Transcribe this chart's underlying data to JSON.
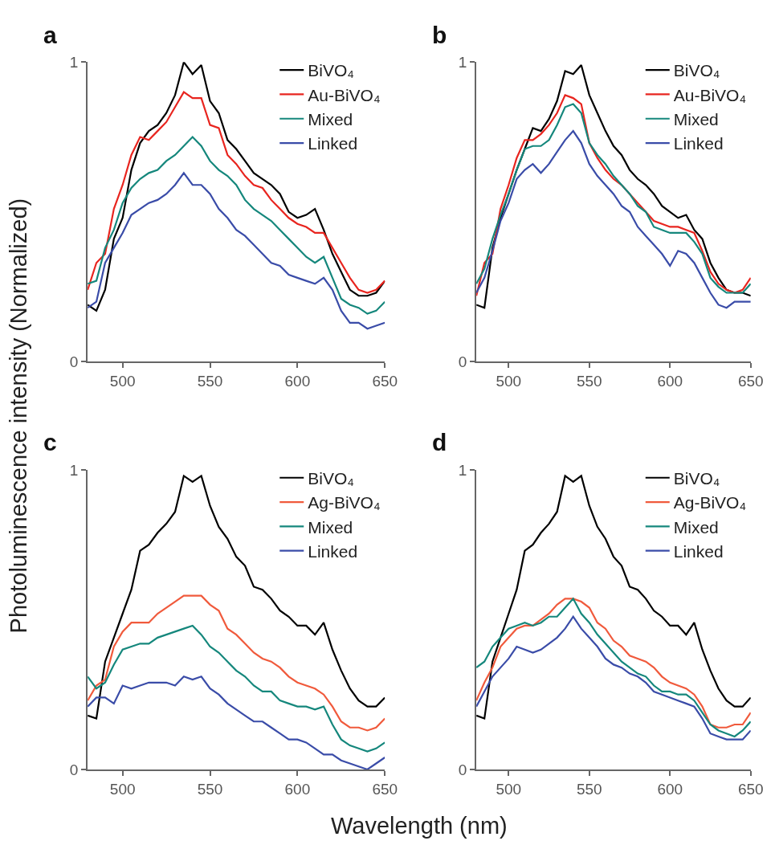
{
  "chart_data": [
    {
      "type": "line",
      "title": "a",
      "ylabel": "Photoluminescence intensity (Normalized)",
      "x": [
        480,
        485,
        490,
        495,
        500,
        505,
        510,
        515,
        520,
        525,
        530,
        535,
        540,
        545,
        550,
        555,
        560,
        565,
        570,
        575,
        580,
        585,
        590,
        595,
        600,
        605,
        610,
        615,
        620,
        625,
        630,
        635,
        640,
        645,
        650
      ],
      "xlim": [
        480,
        650
      ],
      "ylim": [
        0,
        1
      ],
      "xticks": [
        500,
        550,
        600,
        650
      ],
      "yticks": [
        0,
        1
      ],
      "legend": "top right",
      "line_style": "solid",
      "marker": "none",
      "series": [
        {
          "name": "BiVO₄",
          "color": "#000000",
          "values": [
            0.19,
            0.17,
            0.24,
            0.41,
            0.48,
            0.64,
            0.73,
            0.77,
            0.79,
            0.83,
            0.89,
            1.0,
            0.96,
            0.99,
            0.87,
            0.83,
            0.74,
            0.71,
            0.67,
            0.63,
            0.61,
            0.59,
            0.56,
            0.5,
            0.48,
            0.49,
            0.51,
            0.44,
            0.36,
            0.3,
            0.24,
            0.22,
            0.22,
            0.23,
            0.27
          ]
        },
        {
          "name": "Au-BiVO₄",
          "color": "#e8251f",
          "values": [
            0.24,
            0.33,
            0.36,
            0.51,
            0.59,
            0.69,
            0.75,
            0.74,
            0.77,
            0.8,
            0.85,
            0.9,
            0.88,
            0.88,
            0.79,
            0.78,
            0.69,
            0.66,
            0.62,
            0.59,
            0.58,
            0.54,
            0.51,
            0.48,
            0.46,
            0.45,
            0.43,
            0.43,
            0.38,
            0.33,
            0.28,
            0.24,
            0.23,
            0.24,
            0.27
          ]
        },
        {
          "name": "Mixed",
          "color": "#15877c",
          "values": [
            0.26,
            0.27,
            0.38,
            0.44,
            0.53,
            0.58,
            0.61,
            0.63,
            0.64,
            0.67,
            0.69,
            0.72,
            0.75,
            0.72,
            0.67,
            0.64,
            0.62,
            0.59,
            0.54,
            0.51,
            0.49,
            0.47,
            0.44,
            0.41,
            0.38,
            0.35,
            0.33,
            0.35,
            0.28,
            0.21,
            0.19,
            0.18,
            0.16,
            0.17,
            0.2
          ]
        },
        {
          "name": "Linked",
          "color": "#3a4ca8",
          "values": [
            0.18,
            0.2,
            0.33,
            0.38,
            0.43,
            0.49,
            0.51,
            0.53,
            0.54,
            0.56,
            0.59,
            0.63,
            0.59,
            0.59,
            0.56,
            0.51,
            0.48,
            0.44,
            0.42,
            0.39,
            0.36,
            0.33,
            0.32,
            0.29,
            0.28,
            0.27,
            0.26,
            0.28,
            0.24,
            0.17,
            0.13,
            0.13,
            0.11,
            0.12,
            0.13
          ]
        }
      ]
    },
    {
      "type": "line",
      "title": "b",
      "x": [
        480,
        485,
        490,
        495,
        500,
        505,
        510,
        515,
        520,
        525,
        530,
        535,
        540,
        545,
        550,
        555,
        560,
        565,
        570,
        575,
        580,
        585,
        590,
        595,
        600,
        605,
        610,
        615,
        620,
        625,
        630,
        635,
        640,
        645,
        650
      ],
      "xlim": [
        480,
        650
      ],
      "ylim": [
        0,
        1
      ],
      "xticks": [
        500,
        550,
        600,
        650
      ],
      "yticks": [
        0,
        1
      ],
      "legend": "top right",
      "line_style": "solid",
      "marker": "none",
      "series": [
        {
          "name": "BiVO₄",
          "color": "#000000",
          "values": [
            0.19,
            0.18,
            0.38,
            0.48,
            0.56,
            0.64,
            0.71,
            0.78,
            0.77,
            0.81,
            0.87,
            0.97,
            0.96,
            0.99,
            0.89,
            0.83,
            0.77,
            0.72,
            0.69,
            0.64,
            0.61,
            0.59,
            0.56,
            0.52,
            0.5,
            0.48,
            0.49,
            0.44,
            0.41,
            0.33,
            0.28,
            0.24,
            0.23,
            0.23,
            0.22
          ]
        },
        {
          "name": "Au-BiVO₄",
          "color": "#e8251f",
          "values": [
            0.22,
            0.33,
            0.36,
            0.51,
            0.59,
            0.68,
            0.74,
            0.74,
            0.76,
            0.79,
            0.83,
            0.89,
            0.88,
            0.86,
            0.73,
            0.68,
            0.64,
            0.61,
            0.59,
            0.56,
            0.53,
            0.5,
            0.47,
            0.46,
            0.45,
            0.45,
            0.44,
            0.43,
            0.37,
            0.3,
            0.26,
            0.24,
            0.23,
            0.24,
            0.28
          ]
        },
        {
          "name": "Mixed",
          "color": "#15877c",
          "values": [
            0.26,
            0.31,
            0.41,
            0.49,
            0.56,
            0.64,
            0.71,
            0.72,
            0.72,
            0.74,
            0.79,
            0.85,
            0.86,
            0.83,
            0.73,
            0.69,
            0.66,
            0.62,
            0.59,
            0.56,
            0.52,
            0.5,
            0.45,
            0.44,
            0.43,
            0.43,
            0.43,
            0.4,
            0.36,
            0.28,
            0.25,
            0.23,
            0.23,
            0.23,
            0.26
          ]
        },
        {
          "name": "Linked",
          "color": "#3a4ca8",
          "values": [
            0.23,
            0.28,
            0.37,
            0.47,
            0.53,
            0.61,
            0.64,
            0.66,
            0.63,
            0.66,
            0.7,
            0.74,
            0.77,
            0.73,
            0.66,
            0.62,
            0.59,
            0.56,
            0.52,
            0.5,
            0.45,
            0.42,
            0.39,
            0.36,
            0.32,
            0.37,
            0.36,
            0.33,
            0.28,
            0.23,
            0.19,
            0.18,
            0.2,
            0.2,
            0.2
          ]
        }
      ]
    },
    {
      "type": "line",
      "title": "c",
      "xlabel": "Wavelength (nm)",
      "x": [
        480,
        485,
        490,
        495,
        500,
        505,
        510,
        515,
        520,
        525,
        530,
        535,
        540,
        545,
        550,
        555,
        560,
        565,
        570,
        575,
        580,
        585,
        590,
        595,
        600,
        605,
        610,
        615,
        620,
        625,
        630,
        635,
        640,
        645,
        650
      ],
      "xlim": [
        480,
        650
      ],
      "ylim": [
        0,
        1
      ],
      "xticks": [
        500,
        550,
        600,
        650
      ],
      "yticks": [
        0,
        1
      ],
      "legend": "top right",
      "line_style": "solid",
      "marker": "none",
      "series": [
        {
          "name": "BiVO₄",
          "color": "#000000",
          "values": [
            0.18,
            0.17,
            0.36,
            0.44,
            0.52,
            0.6,
            0.73,
            0.75,
            0.79,
            0.82,
            0.86,
            0.98,
            0.96,
            0.98,
            0.88,
            0.81,
            0.77,
            0.71,
            0.68,
            0.61,
            0.6,
            0.57,
            0.53,
            0.51,
            0.48,
            0.48,
            0.45,
            0.49,
            0.4,
            0.33,
            0.27,
            0.23,
            0.21,
            0.21,
            0.24
          ]
        },
        {
          "name": "Ag-BiVO₄",
          "color": "#f05a3c",
          "values": [
            0.23,
            0.28,
            0.3,
            0.41,
            0.46,
            0.49,
            0.49,
            0.49,
            0.52,
            0.54,
            0.56,
            0.58,
            0.58,
            0.58,
            0.55,
            0.53,
            0.47,
            0.45,
            0.42,
            0.39,
            0.37,
            0.36,
            0.34,
            0.31,
            0.29,
            0.28,
            0.27,
            0.25,
            0.21,
            0.16,
            0.14,
            0.14,
            0.13,
            0.14,
            0.17
          ]
        },
        {
          "name": "Mixed",
          "color": "#15877c",
          "values": [
            0.31,
            0.27,
            0.29,
            0.35,
            0.4,
            0.41,
            0.42,
            0.42,
            0.44,
            0.45,
            0.46,
            0.47,
            0.48,
            0.45,
            0.41,
            0.39,
            0.36,
            0.33,
            0.31,
            0.28,
            0.26,
            0.26,
            0.23,
            0.22,
            0.21,
            0.21,
            0.2,
            0.21,
            0.15,
            0.1,
            0.08,
            0.07,
            0.06,
            0.07,
            0.09
          ]
        },
        {
          "name": "Linked",
          "color": "#3a4ca8",
          "values": [
            0.21,
            0.24,
            0.24,
            0.22,
            0.28,
            0.27,
            0.28,
            0.29,
            0.29,
            0.29,
            0.28,
            0.31,
            0.3,
            0.31,
            0.27,
            0.25,
            0.22,
            0.2,
            0.18,
            0.16,
            0.16,
            0.14,
            0.12,
            0.1,
            0.1,
            0.09,
            0.07,
            0.05,
            0.05,
            0.03,
            0.02,
            0.01,
            0.0,
            0.02,
            0.04
          ]
        }
      ]
    },
    {
      "type": "line",
      "title": "d",
      "x": [
        480,
        485,
        490,
        495,
        500,
        505,
        510,
        515,
        520,
        525,
        530,
        535,
        540,
        545,
        550,
        555,
        560,
        565,
        570,
        575,
        580,
        585,
        590,
        595,
        600,
        605,
        610,
        615,
        620,
        625,
        630,
        635,
        640,
        645,
        650
      ],
      "xlim": [
        480,
        650
      ],
      "ylim": [
        0,
        1
      ],
      "xticks": [
        500,
        550,
        600,
        650
      ],
      "yticks": [
        0,
        1
      ],
      "legend": "top right",
      "line_style": "solid",
      "marker": "none",
      "series": [
        {
          "name": "BiVO₄",
          "color": "#000000",
          "values": [
            0.18,
            0.17,
            0.36,
            0.44,
            0.52,
            0.6,
            0.73,
            0.75,
            0.79,
            0.82,
            0.86,
            0.98,
            0.96,
            0.98,
            0.88,
            0.81,
            0.77,
            0.71,
            0.68,
            0.61,
            0.6,
            0.57,
            0.53,
            0.51,
            0.48,
            0.48,
            0.45,
            0.49,
            0.4,
            0.33,
            0.27,
            0.23,
            0.21,
            0.21,
            0.24
          ]
        },
        {
          "name": "Ag-BiVO₄",
          "color": "#f05a3c",
          "values": [
            0.23,
            0.29,
            0.34,
            0.41,
            0.44,
            0.47,
            0.48,
            0.48,
            0.5,
            0.52,
            0.55,
            0.57,
            0.57,
            0.56,
            0.54,
            0.49,
            0.47,
            0.43,
            0.41,
            0.38,
            0.37,
            0.36,
            0.34,
            0.31,
            0.29,
            0.28,
            0.27,
            0.25,
            0.21,
            0.15,
            0.14,
            0.14,
            0.15,
            0.15,
            0.19
          ]
        },
        {
          "name": "Mixed",
          "color": "#15877c",
          "values": [
            0.34,
            0.36,
            0.41,
            0.44,
            0.47,
            0.48,
            0.49,
            0.48,
            0.49,
            0.51,
            0.51,
            0.54,
            0.57,
            0.52,
            0.49,
            0.45,
            0.42,
            0.39,
            0.36,
            0.34,
            0.32,
            0.31,
            0.28,
            0.26,
            0.26,
            0.25,
            0.25,
            0.23,
            0.19,
            0.15,
            0.13,
            0.12,
            0.11,
            0.13,
            0.16
          ]
        },
        {
          "name": "Linked",
          "color": "#3a4ca8",
          "values": [
            0.21,
            0.26,
            0.31,
            0.34,
            0.37,
            0.41,
            0.4,
            0.39,
            0.4,
            0.42,
            0.44,
            0.47,
            0.51,
            0.47,
            0.44,
            0.41,
            0.37,
            0.35,
            0.34,
            0.32,
            0.31,
            0.29,
            0.26,
            0.25,
            0.24,
            0.23,
            0.22,
            0.21,
            0.17,
            0.12,
            0.11,
            0.1,
            0.1,
            0.1,
            0.13
          ]
        }
      ]
    }
  ]
}
